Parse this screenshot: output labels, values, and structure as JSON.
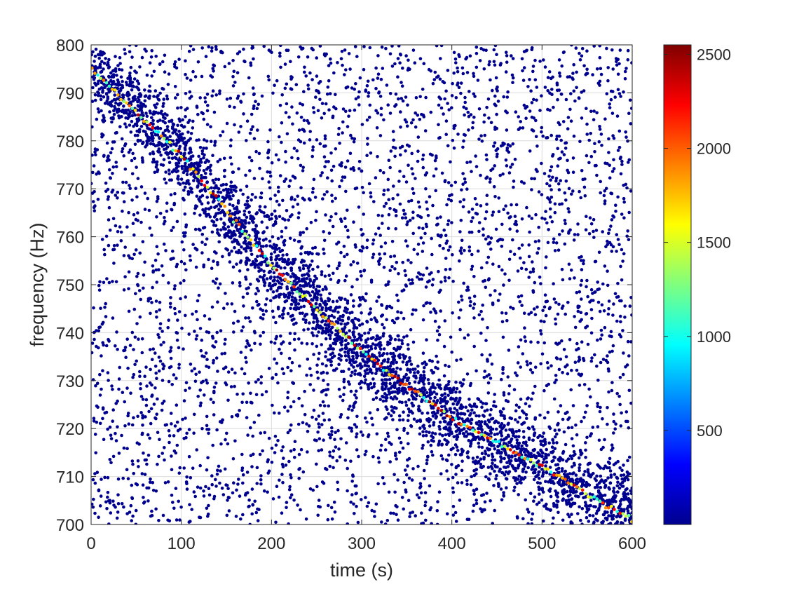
{
  "chart_data": {
    "type": "scatter",
    "title": "",
    "xlabel": "time (s)",
    "ylabel": "frequency (Hz)",
    "xlim": [
      0,
      600
    ],
    "ylim": [
      700,
      800
    ],
    "xticks": [
      "0",
      "100",
      "200",
      "300",
      "400",
      "500",
      "600"
    ],
    "yticks": [
      "700",
      "710",
      "720",
      "730",
      "740",
      "750",
      "760",
      "770",
      "780",
      "790",
      "800"
    ],
    "grid": true,
    "colormap": "jet",
    "colorbar": {
      "range": [
        0,
        2550
      ],
      "ticks": [
        "500",
        "1000",
        "1500",
        "2000",
        "2500"
      ]
    },
    "background_color_value": 10,
    "marker_color_background": "#00008f",
    "signal_track": {
      "description_points": [
        {
          "x": 0,
          "y": 795
        },
        {
          "x": 100,
          "y": 777
        },
        {
          "x": 200,
          "y": 754
        },
        {
          "x": 300,
          "y": 736
        },
        {
          "x": 400,
          "y": 722
        },
        {
          "x": 500,
          "y": 712
        },
        {
          "x": 600,
          "y": 701
        }
      ],
      "color_value_range": [
        900,
        2500
      ]
    },
    "dense_band_points": [
      {
        "x": 60,
        "y": 776
      },
      {
        "x": 130,
        "y": 766
      },
      {
        "x": 170,
        "y": 762
      },
      {
        "x": 230,
        "y": 746
      },
      {
        "x": 300,
        "y": 733
      },
      {
        "x": 360,
        "y": 725
      },
      {
        "x": 450,
        "y": 717
      },
      {
        "x": 520,
        "y": 710
      },
      {
        "x": 580,
        "y": 705
      }
    ]
  }
}
